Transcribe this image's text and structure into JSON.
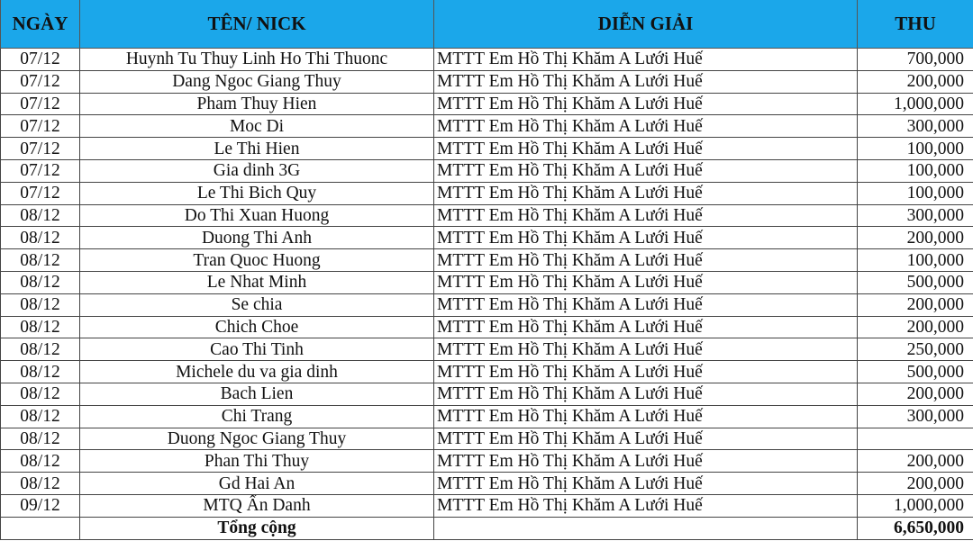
{
  "headers": {
    "date": "NGÀY",
    "name": "TÊN/ NICK",
    "desc": "DIỄN GIẢI",
    "amount": "THU"
  },
  "header_color": "#1ba7ea",
  "rows": [
    {
      "date": "07/12",
      "name": "Huynh Tu Thuy Linh Ho Thi Thuonc",
      "desc": "MTTT Em Hồ Thị Khăm A Lưới Huế",
      "amount": "700,000"
    },
    {
      "date": "07/12",
      "name": "Dang Ngoc Giang Thuy",
      "desc": "MTTT Em Hồ Thị Khăm A Lưới Huế",
      "amount": "200,000"
    },
    {
      "date": "07/12",
      "name": "Pham Thuy Hien",
      "desc": "MTTT Em Hồ Thị Khăm A Lưới Huế",
      "amount": "1,000,000"
    },
    {
      "date": "07/12",
      "name": "Moc Di",
      "desc": "MTTT Em Hồ Thị Khăm A Lưới Huế",
      "amount": "300,000"
    },
    {
      "date": "07/12",
      "name": "Le Thi Hien",
      "desc": "MTTT Em Hồ Thị Khăm A Lưới Huế",
      "amount": "100,000"
    },
    {
      "date": "07/12",
      "name": "Gia dinh 3G",
      "desc": "MTTT Em Hồ Thị Khăm A Lưới Huế",
      "amount": "100,000"
    },
    {
      "date": "07/12",
      "name": "Le Thi Bich Quy",
      "desc": "MTTT Em Hồ Thị Khăm A Lưới Huế",
      "amount": "100,000"
    },
    {
      "date": "08/12",
      "name": "Do Thi Xuan Huong",
      "desc": "MTTT Em Hồ Thị Khăm A Lưới Huế",
      "amount": "300,000"
    },
    {
      "date": "08/12",
      "name": "Duong Thi Anh",
      "desc": "MTTT Em Hồ Thị Khăm A Lưới Huế",
      "amount": "200,000"
    },
    {
      "date": "08/12",
      "name": "Tran Quoc Huong",
      "desc": "MTTT Em Hồ Thị Khăm A Lưới Huế",
      "amount": "100,000"
    },
    {
      "date": "08/12",
      "name": "Le Nhat Minh",
      "desc": "MTTT Em Hồ Thị Khăm A Lưới Huế",
      "amount": "500,000"
    },
    {
      "date": "08/12",
      "name": "Se chia",
      "desc": "MTTT Em Hồ Thị Khăm A Lưới Huế",
      "amount": "200,000"
    },
    {
      "date": "08/12",
      "name": "Chich Choe",
      "desc": "MTTT Em Hồ Thị Khăm A Lưới Huế",
      "amount": "200,000"
    },
    {
      "date": "08/12",
      "name": "Cao Thi Tinh",
      "desc": "MTTT Em Hồ Thị Khăm A Lưới Huế",
      "amount": "250,000"
    },
    {
      "date": "08/12",
      "name": "Michele  du va gia dinh",
      "desc": "MTTT Em Hồ Thị Khăm A Lưới Huế",
      "amount": "500,000"
    },
    {
      "date": "08/12",
      "name": "Bach Lien",
      "desc": "MTTT Em Hồ Thị Khăm A Lưới Huế",
      "amount": "200,000"
    },
    {
      "date": "08/12",
      "name": "Chi Trang",
      "desc": "MTTT Em Hồ Thị Khăm A Lưới Huế",
      "amount": "300,000"
    },
    {
      "date": "08/12",
      "name": "Duong Ngoc Giang Thuy",
      "desc": "MTTT Em Hồ Thị Khăm A Lưới Huế",
      "amount": ""
    },
    {
      "date": "08/12",
      "name": "Phan Thi Thuy",
      "desc": "MTTT Em Hồ Thị Khăm A Lưới Huế",
      "amount": "200,000"
    },
    {
      "date": "08/12",
      "name": "Gd Hai An",
      "desc": "MTTT Em Hồ Thị Khăm A Lưới Huế",
      "amount": "200,000"
    },
    {
      "date": "09/12",
      "name": "MTQ Ẩn Danh",
      "desc": "MTTT Em Hồ Thị Khăm A Lưới Huế",
      "amount": "1,000,000"
    }
  ],
  "total": {
    "label": "Tổng cộng",
    "amount": "6,650,000"
  }
}
